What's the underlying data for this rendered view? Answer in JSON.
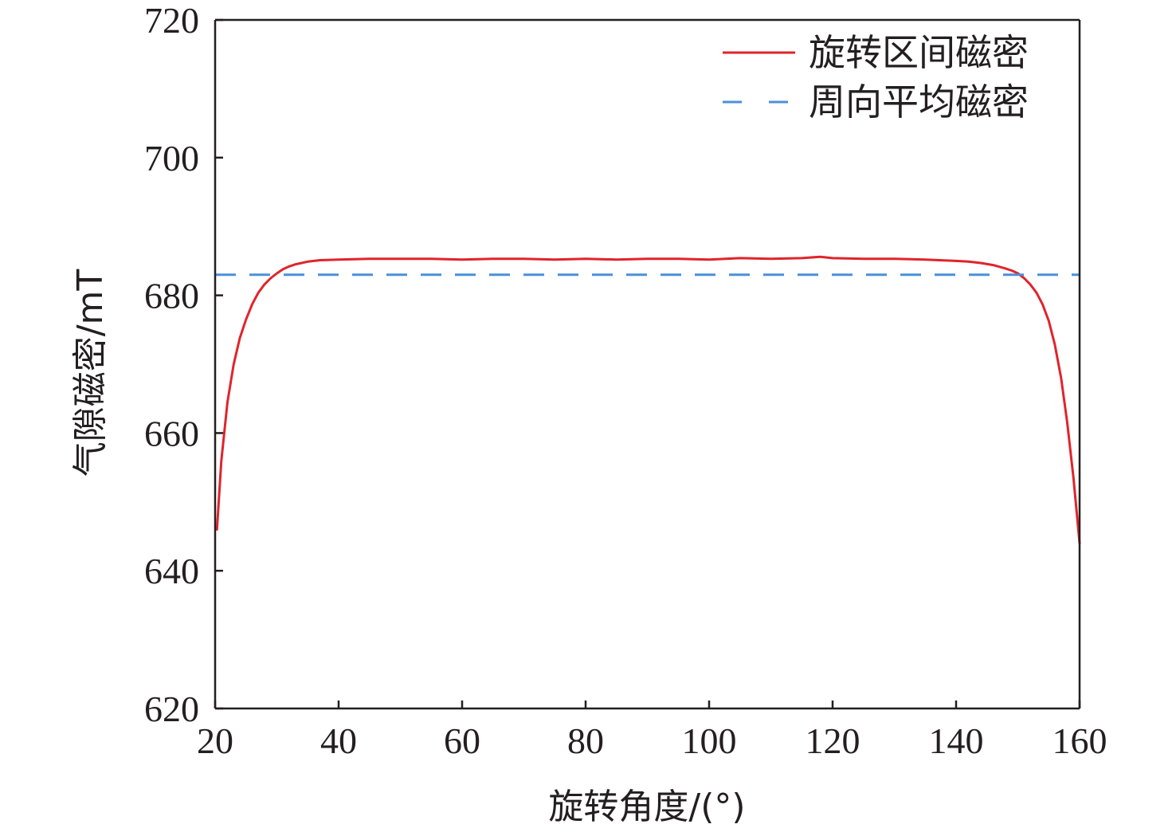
{
  "chart_data": {
    "type": "line",
    "xlabel": "旋转角度/(°)",
    "ylabel": "气隙磁密/mT",
    "xlim": [
      20,
      160
    ],
    "ylim": [
      620,
      720
    ],
    "x_ticks": [
      "20",
      "40",
      "60",
      "80",
      "100",
      "120",
      "140",
      "160"
    ],
    "y_ticks": [
      "620",
      "640",
      "660",
      "680",
      "700",
      "720"
    ],
    "grid": false,
    "legend_position": "top-right",
    "series": [
      {
        "name": "旋转区间磁密",
        "color": "#e0242b",
        "style": "solid",
        "x": [
          20.3,
          21,
          22,
          23,
          24,
          25,
          26,
          27,
          28,
          29,
          30,
          31,
          32,
          33,
          34,
          35,
          36,
          37,
          40,
          45,
          50,
          55,
          60,
          65,
          70,
          75,
          80,
          85,
          90,
          95,
          100,
          105,
          110,
          115,
          118,
          120,
          125,
          130,
          135,
          140,
          142,
          144,
          146,
          148,
          149,
          150,
          151,
          152,
          153,
          154,
          155,
          156,
          157,
          158,
          159,
          160
        ],
        "y": [
          646.0,
          656.0,
          664.5,
          670.0,
          673.8,
          676.5,
          678.7,
          680.4,
          681.6,
          682.5,
          683.2,
          683.8,
          684.2,
          684.5,
          684.7,
          684.9,
          685.0,
          685.1,
          685.2,
          685.3,
          685.3,
          685.3,
          685.2,
          685.3,
          685.3,
          685.2,
          685.3,
          685.2,
          685.3,
          685.3,
          685.2,
          685.4,
          685.3,
          685.4,
          685.6,
          685.4,
          685.3,
          685.3,
          685.2,
          685.0,
          684.9,
          684.7,
          684.4,
          683.9,
          683.6,
          683.2,
          682.5,
          681.6,
          680.4,
          678.7,
          676.3,
          672.8,
          668.0,
          661.5,
          653.5,
          644.0
        ]
      },
      {
        "name": "周向平均磁密",
        "color": "#4a90d9",
        "style": "dashed",
        "x": [
          20,
          160
        ],
        "y": [
          683.0,
          683.0
        ]
      }
    ]
  }
}
